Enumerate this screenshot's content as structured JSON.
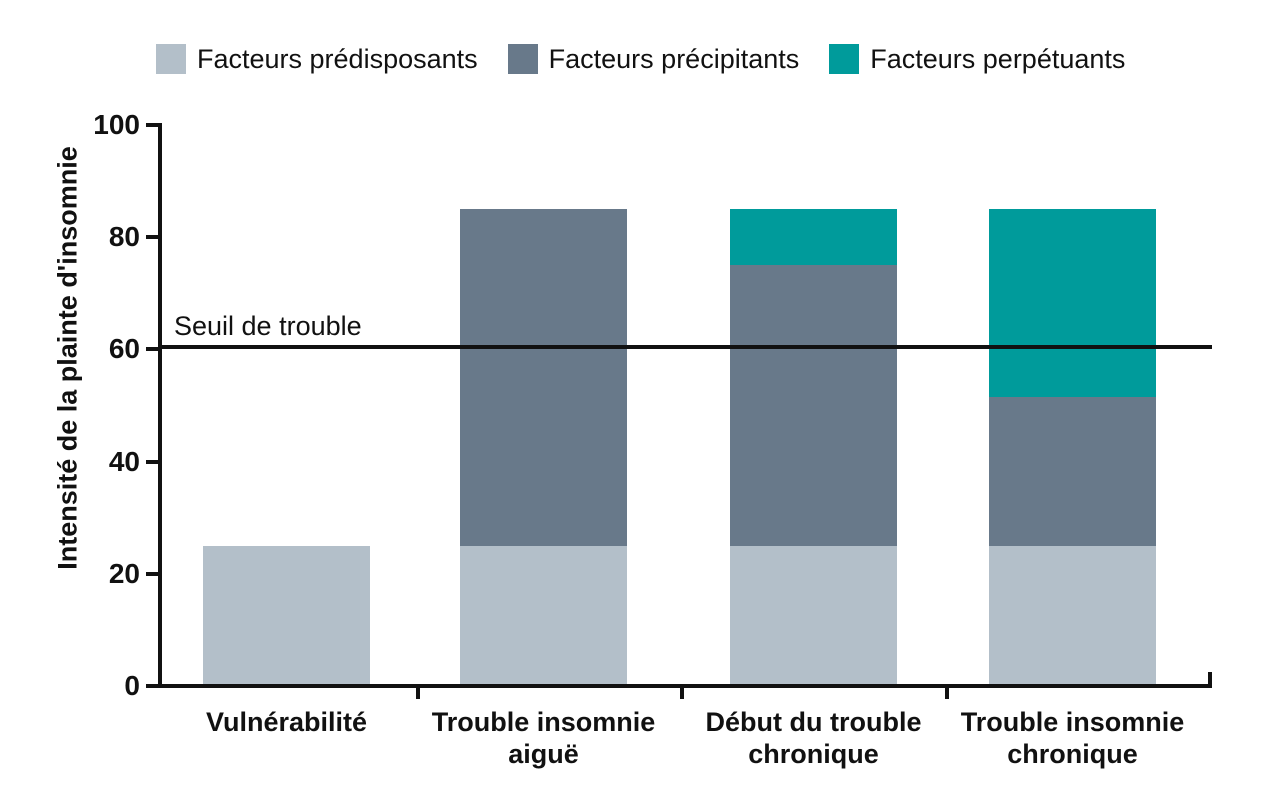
{
  "figure": {
    "kind": "stacked-bar-chart"
  },
  "legend": {
    "items": [
      {
        "label": "Facteurs prédisposants",
        "color": "#b3bfc9"
      },
      {
        "label": "Facteurs précipitants",
        "color": "#68798a"
      },
      {
        "label": "Facteurs perpétuants",
        "color": "#009b9b"
      }
    ]
  },
  "threshold": {
    "label": "Seuil de trouble",
    "value": 60.5
  },
  "chart_data": {
    "type": "bar",
    "stacked": true,
    "ylabel": "Intensité de la plainte d'insomnie",
    "xlabel": "",
    "ylim": [
      0,
      100
    ],
    "yticks": [
      0,
      20,
      40,
      60,
      80,
      100
    ],
    "grid": false,
    "legend_position": "top",
    "categories": [
      "Vulnérabilité",
      "Trouble insomnie aiguë",
      "Début du trouble chronique",
      "Trouble insomnie chronique"
    ],
    "series": [
      {
        "name": "Facteurs prédisposants",
        "color": "#b3bfc9",
        "values": [
          25,
          25,
          25,
          25
        ]
      },
      {
        "name": "Facteurs précipitants",
        "color": "#68798a",
        "values": [
          0,
          60,
          50,
          26.5
        ]
      },
      {
        "name": "Facteurs perpétuants",
        "color": "#009b9b",
        "values": [
          0,
          0,
          10,
          33.5
        ]
      }
    ],
    "annotations": [
      {
        "type": "hline",
        "y": 60.5,
        "label": "Seuil de trouble"
      }
    ],
    "bar_totals": [
      25,
      85,
      85,
      85
    ]
  }
}
